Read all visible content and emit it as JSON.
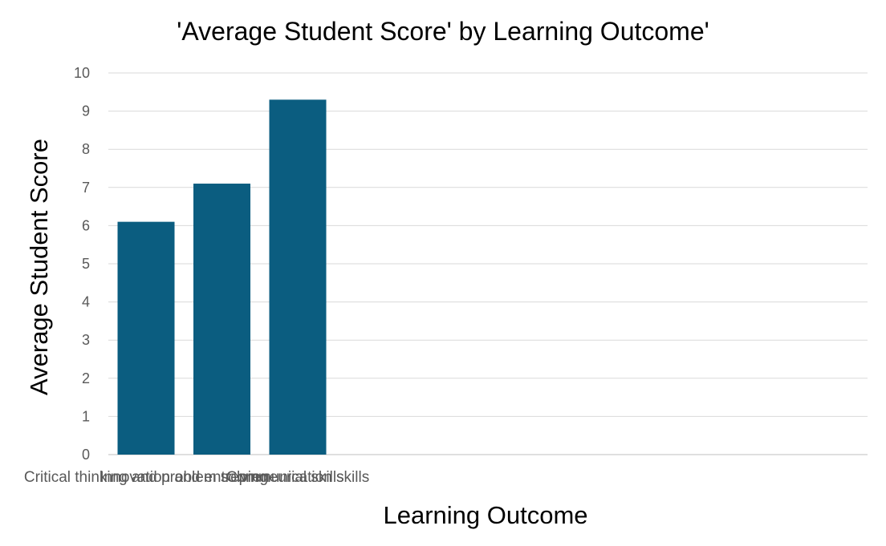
{
  "chart_data": {
    "type": "bar",
    "title": "'Average Student Score' by Learning Outcome'",
    "xlabel": "Learning Outcome",
    "ylabel": "Average Student Score",
    "categories": [
      "Critical thinking and problem solving",
      "Innovation and entrepreneurial skills",
      "Communication skills"
    ],
    "values": [
      6.1,
      7.1,
      9.3
    ],
    "ylim": [
      0,
      10
    ],
    "yticks": [
      0,
      1,
      2,
      3,
      4,
      5,
      6,
      7,
      8,
      9,
      10
    ],
    "grid": true,
    "legend": "none",
    "bar_color": "#0b5d80"
  }
}
